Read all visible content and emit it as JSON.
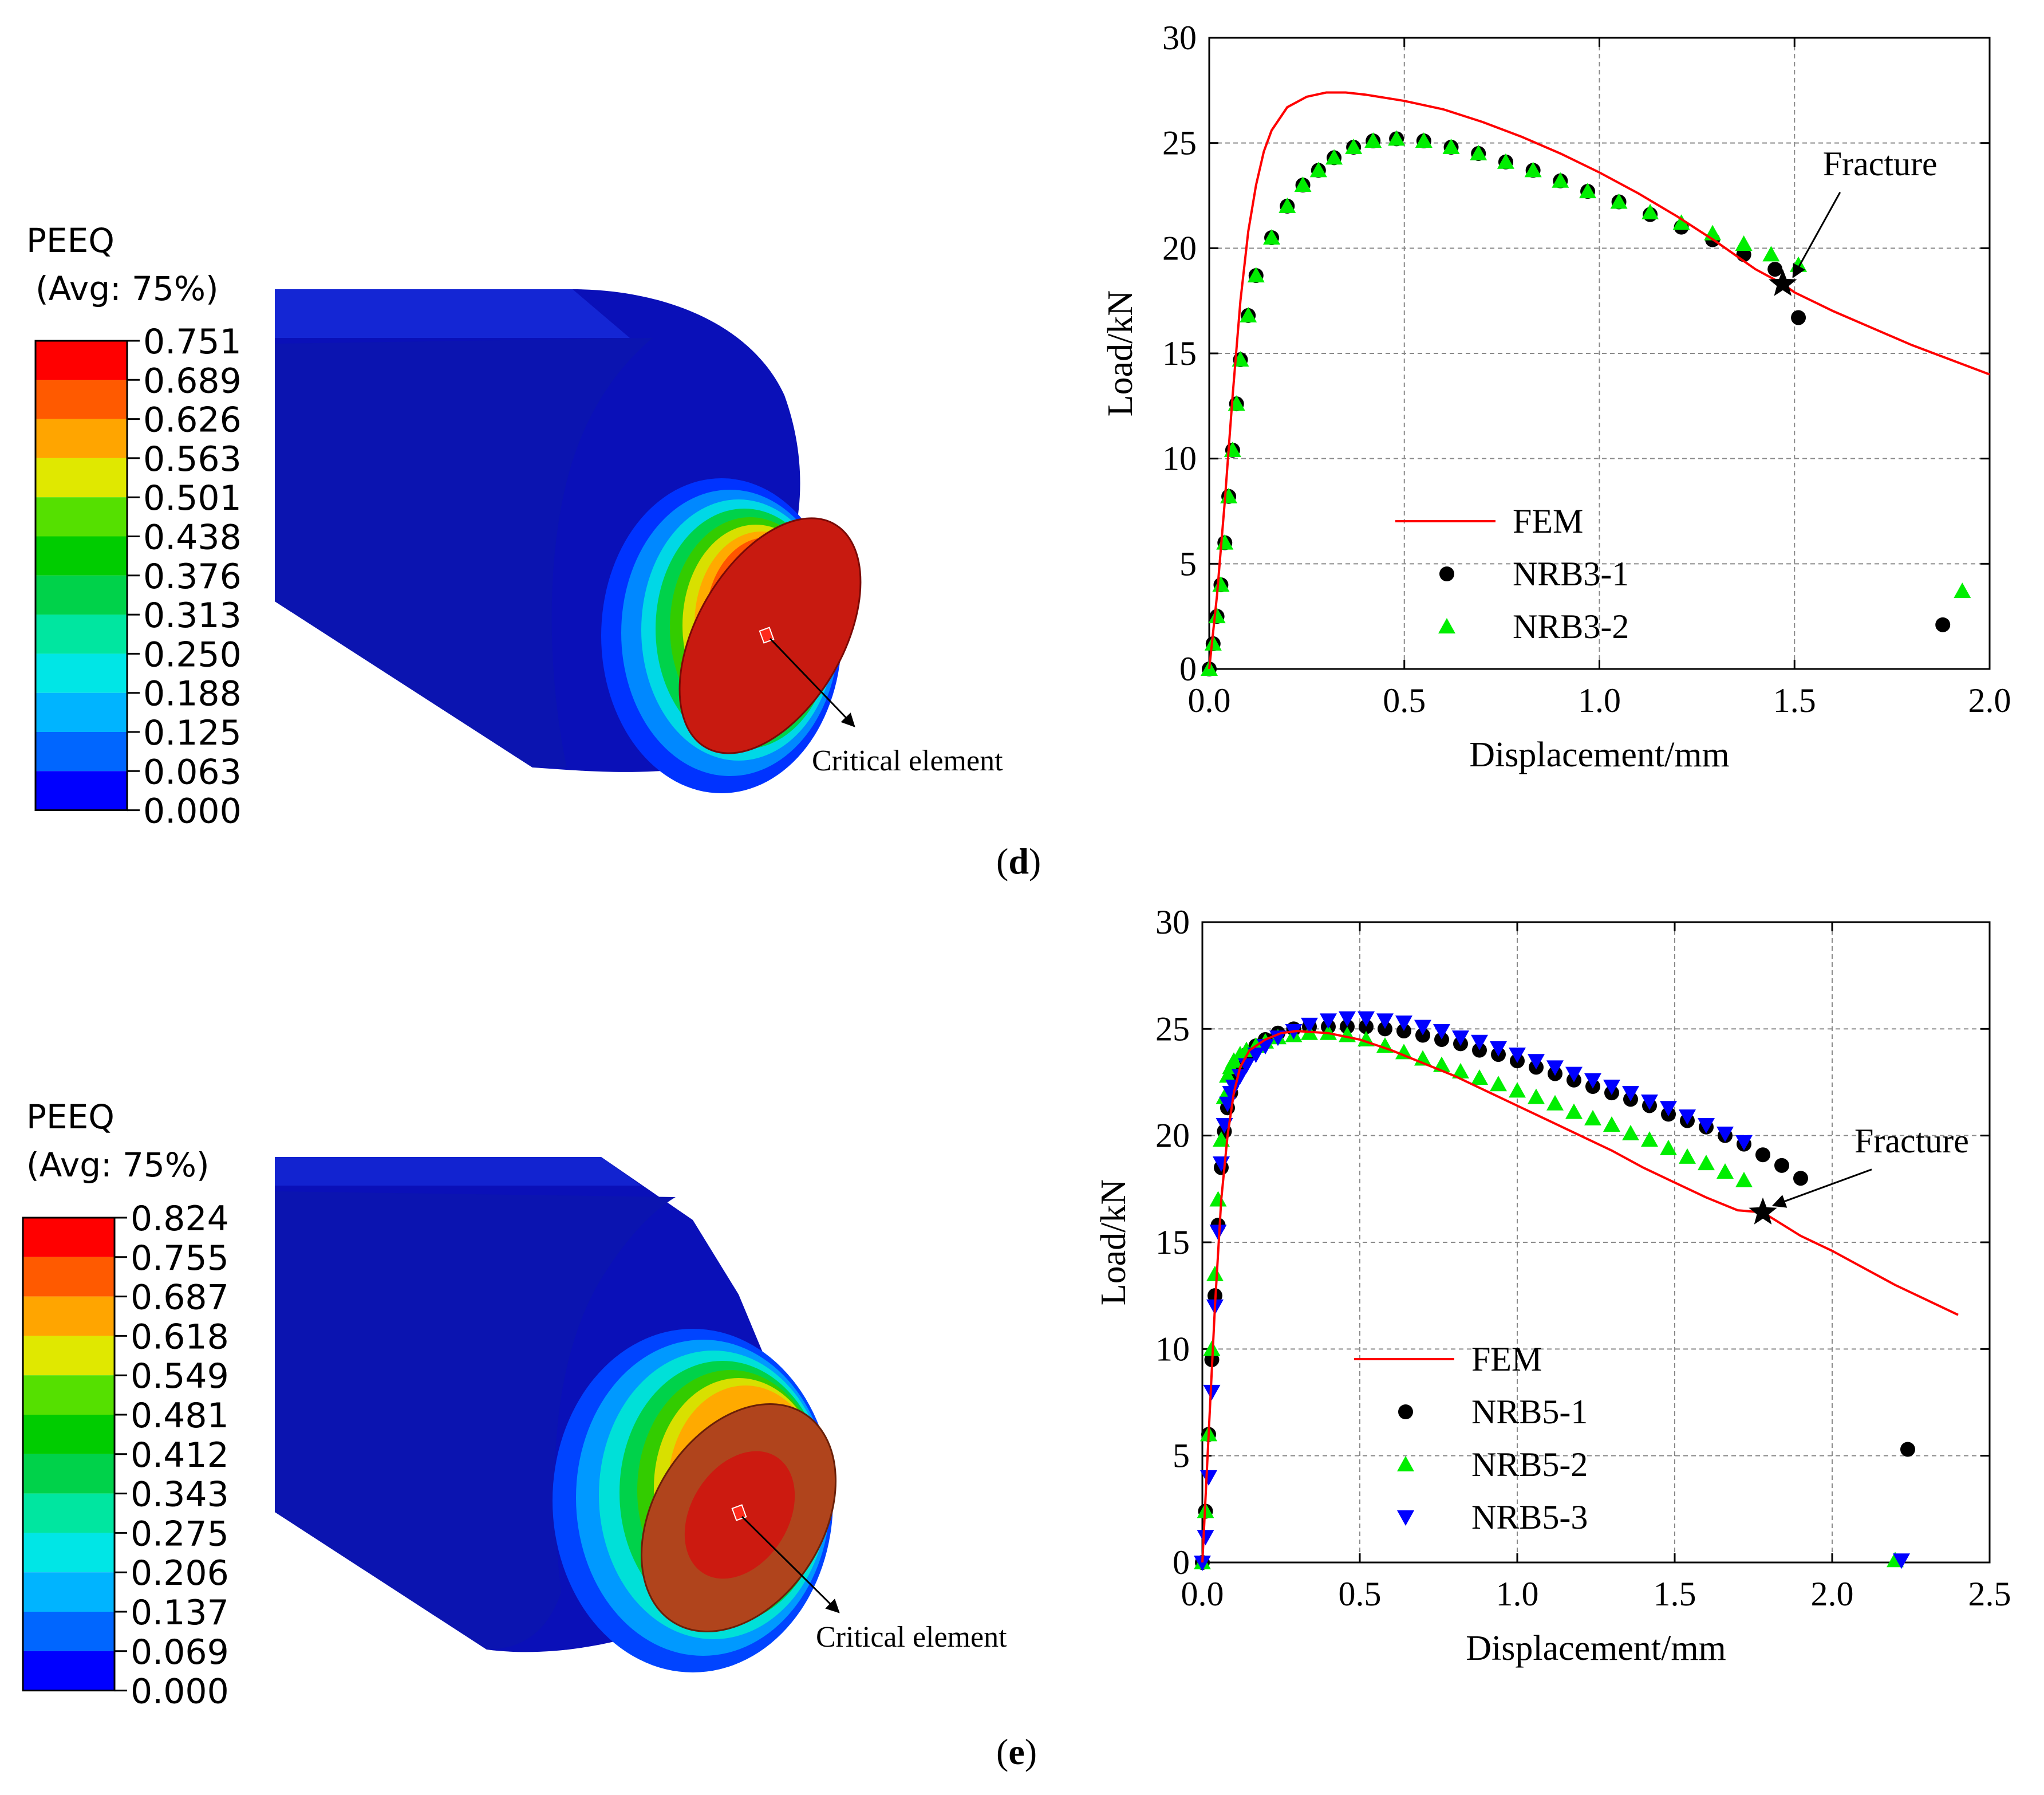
{
  "panels": [
    {
      "id": "d",
      "label": "(d)",
      "label_letter": "d",
      "contour": {
        "title_line1": "PEEQ",
        "title_line2": "(Avg: 75%)",
        "levels": [
          "0.751",
          "0.689",
          "0.626",
          "0.563",
          "0.501",
          "0.438",
          "0.376",
          "0.313",
          "0.250",
          "0.188",
          "0.125",
          "0.063",
          "0.000"
        ],
        "band_colors": [
          "#ff0000",
          "#ff5a00",
          "#ffa500",
          "#e0e800",
          "#55e000",
          "#00cc00",
          "#00d24a",
          "#00e6a0",
          "#00e6e6",
          "#00b4ff",
          "#0066ff",
          "#0000ff"
        ],
        "annotation": "Critical element"
      },
      "chart_data": {
        "type": "line",
        "xlabel": "Displacement/mm",
        "ylabel": "Load/kN",
        "xlim": [
          0.0,
          2.0
        ],
        "ylim": [
          0,
          30
        ],
        "xticks": [
          "0.0",
          "0.5",
          "1.0",
          "1.5",
          "2.0"
        ],
        "yticks": [
          "0",
          "5",
          "10",
          "15",
          "20",
          "25",
          "30"
        ],
        "grid": true,
        "annotation": {
          "text": "Fracture",
          "x": 1.47,
          "y": 18.3
        },
        "series": [
          {
            "name": "FEM",
            "kind": "line",
            "color": "#ff0000",
            "x": [
              0,
              0.02,
              0.04,
              0.06,
              0.08,
              0.1,
              0.12,
              0.14,
              0.16,
              0.2,
              0.25,
              0.3,
              0.35,
              0.4,
              0.5,
              0.6,
              0.7,
              0.8,
              0.9,
              1.0,
              1.1,
              1.2,
              1.3,
              1.4,
              1.47,
              1.5,
              1.6,
              1.7,
              1.8,
              1.9,
              2.0
            ],
            "y": [
              0,
              3.5,
              8,
              13,
              17.5,
              20.8,
              23.0,
              24.6,
              25.6,
              26.7,
              27.2,
              27.4,
              27.4,
              27.3,
              27.0,
              26.6,
              26.0,
              25.3,
              24.5,
              23.6,
              22.6,
              21.5,
              20.3,
              19.0,
              18.3,
              17.9,
              17.0,
              16.2,
              15.4,
              14.7,
              14.0
            ]
          },
          {
            "name": "NRB3-1",
            "kind": "marker",
            "marker": "circle",
            "color": "#000000",
            "x": [
              0,
              0.01,
              0.02,
              0.03,
              0.04,
              0.05,
              0.06,
              0.07,
              0.08,
              0.1,
              0.12,
              0.16,
              0.2,
              0.24,
              0.28,
              0.32,
              0.37,
              0.42,
              0.48,
              0.55,
              0.62,
              0.69,
              0.76,
              0.83,
              0.9,
              0.97,
              1.05,
              1.13,
              1.21,
              1.29,
              1.37,
              1.45,
              1.51,
              1.88
            ],
            "y": [
              0,
              1.2,
              2.5,
              4.0,
              6.0,
              8.2,
              10.4,
              12.6,
              14.7,
              16.8,
              18.7,
              20.5,
              22.0,
              23.0,
              23.7,
              24.3,
              24.8,
              25.1,
              25.2,
              25.1,
              24.8,
              24.5,
              24.1,
              23.7,
              23.2,
              22.7,
              22.2,
              21.6,
              21.0,
              20.4,
              19.7,
              19.0,
              16.7,
              2.1
            ]
          },
          {
            "name": "NRB3-2",
            "kind": "marker",
            "marker": "triangle-up",
            "color": "#00ee00",
            "x": [
              0,
              0.01,
              0.02,
              0.03,
              0.04,
              0.05,
              0.06,
              0.07,
              0.08,
              0.1,
              0.12,
              0.16,
              0.2,
              0.24,
              0.28,
              0.32,
              0.37,
              0.42,
              0.48,
              0.55,
              0.62,
              0.69,
              0.76,
              0.83,
              0.9,
              0.97,
              1.05,
              1.13,
              1.21,
              1.29,
              1.37,
              1.44,
              1.51,
              1.93
            ],
            "y": [
              0,
              1.2,
              2.5,
              4.0,
              6.0,
              8.2,
              10.4,
              12.6,
              14.7,
              16.8,
              18.7,
              20.5,
              22.0,
              23.0,
              23.7,
              24.3,
              24.8,
              25.1,
              25.2,
              25.1,
              24.8,
              24.5,
              24.1,
              23.7,
              23.2,
              22.7,
              22.2,
              21.7,
              21.2,
              20.7,
              20.2,
              19.7,
              19.2,
              3.7
            ]
          }
        ]
      }
    },
    {
      "id": "e",
      "label": "(e)",
      "label_letter": "e",
      "contour": {
        "title_line1": "PEEQ",
        "title_line2": "(Avg: 75%)",
        "levels": [
          "0.824",
          "0.755",
          "0.687",
          "0.618",
          "0.549",
          "0.481",
          "0.412",
          "0.343",
          "0.275",
          "0.206",
          "0.137",
          "0.069",
          "0.000"
        ],
        "band_colors": [
          "#ff0000",
          "#ff5a00",
          "#ffa500",
          "#e0e800",
          "#55e000",
          "#00cc00",
          "#00d24a",
          "#00e6a0",
          "#00e6e6",
          "#00b4ff",
          "#0066ff",
          "#0000ff"
        ],
        "annotation": "Critical element"
      },
      "chart_data": {
        "type": "line",
        "xlabel": "Displacement/mm",
        "ylabel": "Load/kN",
        "xlim": [
          0.0,
          2.5
        ],
        "ylim": [
          0,
          30
        ],
        "xticks": [
          "0.0",
          "0.5",
          "1.0",
          "1.5",
          "2.0",
          "2.5"
        ],
        "yticks": [
          "0",
          "5",
          "10",
          "15",
          "20",
          "25",
          "30"
        ],
        "grid": true,
        "annotation": {
          "text": "Fracture",
          "x": 1.78,
          "y": 16.4
        },
        "series": [
          {
            "name": "FEM",
            "kind": "line",
            "color": "#ff0000",
            "x": [
              0,
              0.02,
              0.04,
              0.06,
              0.08,
              0.1,
              0.12,
              0.15,
              0.2,
              0.25,
              0.3,
              0.4,
              0.5,
              0.6,
              0.7,
              0.8,
              0.9,
              1.0,
              1.1,
              1.2,
              1.3,
              1.4,
              1.5,
              1.6,
              1.7,
              1.78,
              1.9,
              2.0,
              2.1,
              2.2,
              2.3,
              2.4
            ],
            "y": [
              0,
              6,
              12,
              17,
              20,
              22,
              23.2,
              24.0,
              24.5,
              24.8,
              24.9,
              24.8,
              24.5,
              24.0,
              23.4,
              22.8,
              22.1,
              21.4,
              20.7,
              20.0,
              19.3,
              18.5,
              17.8,
              17.1,
              16.5,
              16.4,
              15.3,
              14.6,
              13.8,
              13.0,
              12.3,
              11.6
            ]
          },
          {
            "name": "NRB5-1",
            "kind": "marker",
            "marker": "circle",
            "color": "#000000",
            "x": [
              0,
              0.01,
              0.02,
              0.03,
              0.04,
              0.05,
              0.06,
              0.07,
              0.08,
              0.09,
              0.1,
              0.12,
              0.14,
              0.17,
              0.2,
              0.24,
              0.29,
              0.34,
              0.4,
              0.46,
              0.52,
              0.58,
              0.64,
              0.7,
              0.76,
              0.82,
              0.88,
              0.94,
              1.0,
              1.06,
              1.12,
              1.18,
              1.24,
              1.3,
              1.36,
              1.42,
              1.48,
              1.54,
              1.6,
              1.66,
              1.72,
              1.78,
              1.84,
              1.9,
              2.24
            ],
            "y": [
              0,
              2.4,
              6.0,
              9.5,
              12.5,
              15.8,
              18.5,
              20.2,
              21.3,
              22.0,
              22.6,
              23.3,
              23.8,
              24.2,
              24.5,
              24.8,
              25.0,
              25.1,
              25.1,
              25.1,
              25.1,
              25.0,
              24.9,
              24.7,
              24.5,
              24.3,
              24.0,
              23.8,
              23.5,
              23.2,
              22.9,
              22.6,
              22.3,
              22.0,
              21.7,
              21.4,
              21.0,
              20.7,
              20.4,
              20.0,
              19.6,
              19.1,
              18.6,
              18.0,
              5.3
            ]
          },
          {
            "name": "NRB5-2",
            "kind": "marker",
            "marker": "triangle-up",
            "color": "#00ee00",
            "x": [
              0,
              0.01,
              0.02,
              0.03,
              0.04,
              0.05,
              0.06,
              0.07,
              0.08,
              0.09,
              0.1,
              0.12,
              0.14,
              0.17,
              0.2,
              0.24,
              0.29,
              0.34,
              0.4,
              0.46,
              0.52,
              0.58,
              0.64,
              0.7,
              0.76,
              0.82,
              0.88,
              0.94,
              1.0,
              1.06,
              1.12,
              1.18,
              1.24,
              1.3,
              1.36,
              1.42,
              1.48,
              1.54,
              1.6,
              1.66,
              1.72,
              2.2
            ],
            "y": [
              0,
              2.4,
              6.0,
              10.0,
              13.5,
              17.0,
              19.8,
              21.8,
              22.8,
              23.2,
              23.5,
              23.8,
              24.0,
              24.2,
              24.4,
              24.6,
              24.7,
              24.8,
              24.8,
              24.7,
              24.5,
              24.2,
              23.9,
              23.6,
              23.3,
              23.0,
              22.7,
              22.4,
              22.1,
              21.8,
              21.5,
              21.1,
              20.8,
              20.5,
              20.1,
              19.8,
              19.4,
              19.0,
              18.7,
              18.3,
              17.9,
              0.1
            ]
          },
          {
            "name": "NRB5-3",
            "kind": "marker",
            "marker": "triangle-down",
            "color": "#0000ff",
            "x": [
              0,
              0.01,
              0.02,
              0.03,
              0.04,
              0.05,
              0.06,
              0.07,
              0.08,
              0.09,
              0.1,
              0.12,
              0.14,
              0.17,
              0.2,
              0.24,
              0.29,
              0.34,
              0.4,
              0.46,
              0.52,
              0.58,
              0.64,
              0.7,
              0.76,
              0.82,
              0.88,
              0.94,
              1.0,
              1.06,
              1.12,
              1.18,
              1.24,
              1.3,
              1.36,
              1.42,
              1.48,
              1.54,
              1.6,
              1.66,
              1.72,
              2.22
            ],
            "y": [
              0,
              1.2,
              4.0,
              8.0,
              12.0,
              15.5,
              18.7,
              20.5,
              21.5,
              22.0,
              22.3,
              22.8,
              23.3,
              23.8,
              24.2,
              24.6,
              24.9,
              25.2,
              25.4,
              25.5,
              25.5,
              25.4,
              25.3,
              25.1,
              24.9,
              24.6,
              24.4,
              24.1,
              23.8,
              23.5,
              23.2,
              22.9,
              22.6,
              22.3,
              22.0,
              21.6,
              21.3,
              20.9,
              20.5,
              20.1,
              19.7,
              0.1
            ]
          }
        ]
      }
    }
  ]
}
